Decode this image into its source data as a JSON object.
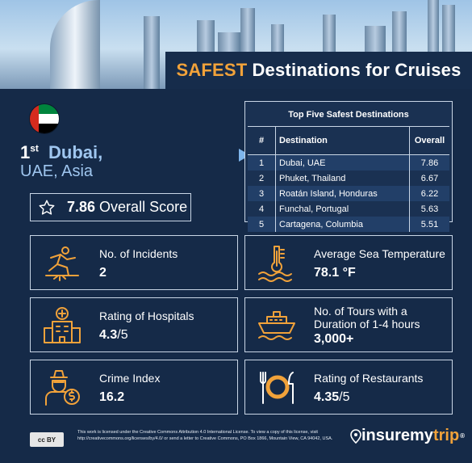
{
  "title": {
    "accent": "SAFEST",
    "rest": "Destinations for Cruises"
  },
  "hero": {
    "rank": "1",
    "rank_suffix": "st",
    "city": "Dubai,",
    "region": "UAE, Asia",
    "score_value": "7.86",
    "score_label": "Overall Score",
    "flag_icon": "uae-flag-icon"
  },
  "table": {
    "title": "Top Five Safest Destinations",
    "headers": [
      "#",
      "Destination",
      "Overall"
    ],
    "rows": [
      {
        "rank": "1",
        "destination": "Dubai, UAE",
        "overall": "7.86"
      },
      {
        "rank": "2",
        "destination": "Phuket, Thailand",
        "overall": "6.67"
      },
      {
        "rank": "3",
        "destination": "Roatán Island, Honduras",
        "overall": "6.22"
      },
      {
        "rank": "4",
        "destination": "Funchal, Portugal",
        "overall": "5.63"
      },
      {
        "rank": "5",
        "destination": "Cartagena, Columbia",
        "overall": "5.51"
      }
    ]
  },
  "stats": {
    "incidents": {
      "label": "No. of Incidents",
      "value": "2",
      "icon": "slip-fall-icon"
    },
    "sea_temp": {
      "label": "Average Sea Temperature",
      "value": "78.1 °F",
      "icon": "thermometer-waves-icon"
    },
    "hospitals": {
      "label": "Rating of Hospitals",
      "value": "4.3",
      "value_suffix": "/5",
      "icon": "hospital-icon"
    },
    "tours": {
      "label": "No. of Tours with a Duration of 1-4 hours",
      "value": "3,000+",
      "icon": "cruise-ship-icon"
    },
    "crime": {
      "label": "Crime Index",
      "value": "16.2",
      "icon": "burglar-icon"
    },
    "restaurants": {
      "label": "Rating of Restaurants",
      "value": "4.35",
      "value_suffix": "/5",
      "icon": "plate-cutlery-icon"
    }
  },
  "footer": {
    "cc_badge": "cc BY",
    "license_text": "This work is licensed under the Creative Commons Attribution 4.0 International License. To view a copy of this license, visit http://creativecommons.org/licenses/by/4.0/ or send a letter to Creative Commons, PO Box 1866, Mountain View, CA 94042, USA.",
    "brand_a": "insuremy",
    "brand_b": "trip",
    "brand_reg": "®"
  },
  "colors": {
    "background": "#152a48",
    "accent": "#f1a23a",
    "highlight": "#9fc6ef",
    "row_shade": "#223f68"
  }
}
